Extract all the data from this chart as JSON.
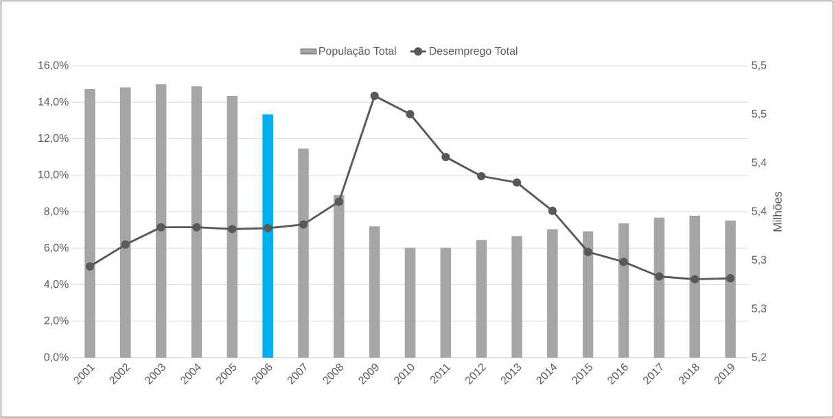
{
  "chart_data": {
    "type": "bar",
    "categories": [
      "2001",
      "2002",
      "2003",
      "2004",
      "2005",
      "2006",
      "2007",
      "2008",
      "2009",
      "2010",
      "2011",
      "2012",
      "2013",
      "2014",
      "2015",
      "2016",
      "2017",
      "2018",
      "2019"
    ],
    "series": [
      {
        "name": "População Total",
        "axis": "y2",
        "color": "#a5a5a5",
        "colors": [
          "#a5a5a5",
          "#a5a5a5",
          "#a5a5a5",
          "#a5a5a5",
          "#a5a5a5",
          "#00b0f0",
          "#a5a5a5",
          "#a5a5a5",
          "#a5a5a5",
          "#a5a5a5",
          "#a5a5a5",
          "#a5a5a5",
          "#a5a5a5",
          "#a5a5a5",
          "#a5a5a5",
          "#a5a5a5",
          "#a5a5a5",
          "#a5a5a5",
          "#a5a5a5"
        ],
        "values": [
          5.476,
          5.478,
          5.481,
          5.479,
          5.469,
          5.45,
          5.415,
          5.367,
          5.335,
          5.313,
          5.313,
          5.321,
          5.325,
          5.332,
          5.33,
          5.338,
          5.344,
          5.346,
          5.341
        ]
      },
      {
        "name": "Desemprego Total",
        "type": "line",
        "color": "#595959",
        "marker": "circle",
        "values": [
          5.0,
          6.2,
          7.15,
          7.15,
          7.05,
          7.1,
          7.3,
          8.55,
          14.35,
          13.35,
          11.0,
          9.95,
          9.6,
          8.05,
          5.8,
          5.25,
          4.45,
          4.3,
          4.35
        ]
      }
    ],
    "ylim": [
      0,
      16
    ],
    "yticks": [
      {
        "value": 0,
        "label": "0,0%"
      },
      {
        "value": 2,
        "label": "2,0%"
      },
      {
        "value": 4,
        "label": "4,0%"
      },
      {
        "value": 6,
        "label": "6,0%"
      },
      {
        "value": 8,
        "label": "8,0%"
      },
      {
        "value": 10,
        "label": "10,0%"
      },
      {
        "value": 12,
        "label": "12,0%"
      },
      {
        "value": 14,
        "label": "14,0%"
      },
      {
        "value": 16,
        "label": "16,0%"
      }
    ],
    "y2label": "Milhões",
    "y2lim": [
      5.2,
      5.5
    ],
    "y2ticks": [
      {
        "value": 5.2,
        "label": "5,2"
      },
      {
        "value": 5.25,
        "label": "5,3"
      },
      {
        "value": 5.3,
        "label": "5,3"
      },
      {
        "value": 5.35,
        "label": "5,4"
      },
      {
        "value": 5.4,
        "label": "5,4"
      },
      {
        "value": 5.45,
        "label": "5,5"
      },
      {
        "value": 5.5,
        "label": "5,5"
      }
    ],
    "grid": "y",
    "legend": "top"
  }
}
